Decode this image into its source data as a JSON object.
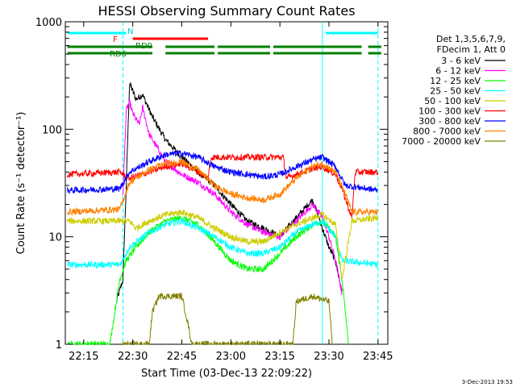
{
  "chart_data": {
    "type": "line",
    "title": "HESSI Observing Summary Count Rates",
    "xlabel": "Start Time (03-Dec-13 22:09:22)",
    "ylabel": "Count Rate (s⁻¹ detector⁻¹)",
    "yscale": "log",
    "ylim": [
      1,
      1000
    ],
    "xlim": [
      "22:09:22",
      "23:48:00"
    ],
    "grid": false,
    "legend_position": "right",
    "x_ticks": [
      "22:15",
      "22:30",
      "22:45",
      "23:00",
      "23:15",
      "23:30",
      "23:45"
    ],
    "y_ticks": [
      "1",
      "10",
      "100",
      "1000"
    ],
    "legend_header": [
      "Det 1,3,5,6,7,9,",
      "FDecim 1, Att 0"
    ],
    "timestamp": "3-Dec-2013 19:53",
    "flag_labels": {
      "N": "N",
      "F": "F",
      "RD0": "RD0",
      "RD6": "RD6"
    },
    "flags": {
      "N": {
        "color": "#00ffff",
        "intervals": [
          [
            "22:10",
            "22:28"
          ],
          [
            "23:29",
            "23:45"
          ]
        ]
      },
      "F": {
        "color": "#ff0000",
        "intervals": [
          [
            "22:30",
            "22:53"
          ]
        ]
      },
      "RD0": {
        "color": "#008000",
        "intervals": [
          [
            "22:10",
            "22:36"
          ],
          [
            "22:40",
            "22:55"
          ],
          [
            "22:56",
            "23:12"
          ],
          [
            "23:13",
            "23:40"
          ],
          [
            "23:42",
            "23:46"
          ]
        ]
      }
    },
    "vlines": [
      {
        "time": "22:27",
        "color": "#00ffff",
        "style": "dashed"
      },
      {
        "time": "23:28",
        "color": "#00ffff",
        "style": "solid"
      },
      {
        "time": "23:45",
        "color": "#00ffff",
        "style": "dashed"
      }
    ],
    "series": [
      {
        "name": "3 - 6 keV",
        "color": "#000000",
        "points": [
          [
            "22:25",
            2.5
          ],
          [
            "22:27",
            4
          ],
          [
            "22:28",
            30
          ],
          [
            "22:29",
            270
          ],
          [
            "22:31",
            190
          ],
          [
            "22:33",
            210
          ],
          [
            "22:36",
            130
          ],
          [
            "22:40",
            80
          ],
          [
            "22:45",
            55
          ],
          [
            "22:50",
            40
          ],
          [
            "22:55",
            30
          ],
          [
            "23:00",
            20
          ],
          [
            "23:05",
            14
          ],
          [
            "23:10",
            12
          ],
          [
            "23:15",
            10
          ],
          [
            "23:20",
            15
          ],
          [
            "23:25",
            22
          ],
          [
            "23:28",
            12
          ],
          [
            "23:30",
            8
          ],
          [
            "23:32",
            6
          ],
          [
            "23:34",
            3
          ]
        ]
      },
      {
        "name": "6 - 12 keV",
        "color": "#ff00ff",
        "points": [
          [
            "22:27",
            25
          ],
          [
            "22:28",
            150
          ],
          [
            "22:29",
            180
          ],
          [
            "22:30",
            140
          ],
          [
            "22:32",
            110
          ],
          [
            "22:33",
            160
          ],
          [
            "22:35",
            90
          ],
          [
            "22:40",
            50
          ],
          [
            "22:45",
            38
          ],
          [
            "22:50",
            32
          ],
          [
            "22:55",
            25
          ],
          [
            "23:00",
            17
          ],
          [
            "23:05",
            13
          ],
          [
            "23:10",
            11
          ],
          [
            "23:15",
            10
          ],
          [
            "23:20",
            14
          ],
          [
            "23:25",
            20
          ],
          [
            "23:28",
            15
          ],
          [
            "23:30",
            10
          ],
          [
            "23:32",
            6
          ],
          [
            "23:34",
            3
          ]
        ]
      },
      {
        "name": "12 - 25 keV",
        "color": "#00ff00",
        "points": [
          [
            "22:10",
            1
          ],
          [
            "22:23",
            1
          ],
          [
            "22:26",
            4
          ],
          [
            "22:28",
            6
          ],
          [
            "22:31",
            8
          ],
          [
            "22:35",
            11
          ],
          [
            "22:40",
            14
          ],
          [
            "22:45",
            15
          ],
          [
            "22:50",
            13
          ],
          [
            "22:55",
            9
          ],
          [
            "23:00",
            6
          ],
          [
            "23:05",
            5
          ],
          [
            "23:10",
            5
          ],
          [
            "23:15",
            7
          ],
          [
            "23:20",
            10
          ],
          [
            "23:25",
            13
          ],
          [
            "23:28",
            14
          ],
          [
            "23:32",
            10
          ],
          [
            "23:34",
            4
          ],
          [
            "23:36",
            1
          ]
        ]
      },
      {
        "name": "25 - 50 keV",
        "color": "#00ffff",
        "points": [
          [
            "22:10",
            5.5
          ],
          [
            "22:26",
            5.5
          ],
          [
            "22:29",
            8
          ],
          [
            "22:35",
            11
          ],
          [
            "22:40",
            13
          ],
          [
            "22:45",
            14
          ],
          [
            "22:50",
            12
          ],
          [
            "22:55",
            10
          ],
          [
            "23:00",
            8
          ],
          [
            "23:05",
            7
          ],
          [
            "23:10",
            7
          ],
          [
            "23:15",
            8
          ],
          [
            "23:20",
            11
          ],
          [
            "23:25",
            13
          ],
          [
            "23:28",
            14
          ],
          [
            "23:32",
            10
          ],
          [
            "23:34",
            6
          ],
          [
            "23:45",
            5.5
          ]
        ]
      },
      {
        "name": "50 - 100 keV",
        "color": "#cccc00",
        "points": [
          [
            "22:10",
            14
          ],
          [
            "22:29",
            14
          ],
          [
            "22:31",
            12
          ],
          [
            "22:35",
            14
          ],
          [
            "22:40",
            16
          ],
          [
            "22:45",
            17
          ],
          [
            "22:50",
            15
          ],
          [
            "22:55",
            12
          ],
          [
            "23:00",
            10
          ],
          [
            "23:05",
            9
          ],
          [
            "23:10",
            9
          ],
          [
            "23:15",
            11
          ],
          [
            "23:20",
            13
          ],
          [
            "23:25",
            15
          ],
          [
            "23:28",
            16
          ],
          [
            "23:32",
            13
          ],
          [
            "23:34",
            4
          ],
          [
            "23:37",
            14
          ],
          [
            "23:45",
            15
          ]
        ]
      },
      {
        "name": "100 - 300 keV",
        "color": "#ff0000",
        "points": [
          [
            "22:10",
            38
          ],
          [
            "22:26",
            40
          ],
          [
            "22:29",
            35
          ],
          [
            "22:35",
            40
          ],
          [
            "22:40",
            45
          ],
          [
            "22:45",
            48
          ],
          [
            "22:50",
            40
          ],
          [
            "22:53",
            35
          ],
          [
            "22:54",
            55
          ],
          [
            "23:10",
            55
          ],
          [
            "23:16",
            55
          ],
          [
            "23:17",
            35
          ],
          [
            "23:20",
            38
          ],
          [
            "23:25",
            43
          ],
          [
            "23:28",
            45
          ],
          [
            "23:32",
            38
          ],
          [
            "23:34",
            28
          ],
          [
            "23:37",
            15
          ],
          [
            "23:38",
            40
          ],
          [
            "23:45",
            40
          ]
        ]
      },
      {
        "name": "300 - 800 keV",
        "color": "#0000ff",
        "points": [
          [
            "22:10",
            27
          ],
          [
            "22:26",
            28
          ],
          [
            "22:29",
            40
          ],
          [
            "22:35",
            50
          ],
          [
            "22:40",
            58
          ],
          [
            "22:45",
            60
          ],
          [
            "22:50",
            55
          ],
          [
            "22:55",
            45
          ],
          [
            "23:00",
            40
          ],
          [
            "23:05",
            38
          ],
          [
            "23:10",
            36
          ],
          [
            "23:15",
            38
          ],
          [
            "23:20",
            45
          ],
          [
            "23:25",
            52
          ],
          [
            "23:28",
            55
          ],
          [
            "23:32",
            45
          ],
          [
            "23:35",
            30
          ],
          [
            "23:45",
            27
          ]
        ]
      },
      {
        "name": "800 - 7000 keV",
        "color": "#ff8000",
        "points": [
          [
            "22:10",
            17
          ],
          [
            "22:26",
            18
          ],
          [
            "22:29",
            32
          ],
          [
            "22:35",
            42
          ],
          [
            "22:40",
            48
          ],
          [
            "22:45",
            50
          ],
          [
            "22:50",
            42
          ],
          [
            "22:55",
            30
          ],
          [
            "23:00",
            25
          ],
          [
            "23:05",
            23
          ],
          [
            "23:10",
            22
          ],
          [
            "23:15",
            25
          ],
          [
            "23:20",
            35
          ],
          [
            "23:25",
            45
          ],
          [
            "23:28",
            48
          ],
          [
            "23:32",
            40
          ],
          [
            "23:35",
            25
          ],
          [
            "23:37",
            17
          ],
          [
            "23:45",
            17
          ]
        ]
      },
      {
        "name": "7000 - 20000 keV",
        "color": "#808000",
        "points": [
          [
            "22:27",
            1
          ],
          [
            "22:35",
            1
          ],
          [
            "22:36",
            2
          ],
          [
            "22:38",
            2.8
          ],
          [
            "22:45",
            2.8
          ],
          [
            "22:47",
            1.5
          ],
          [
            "22:48",
            1
          ],
          [
            "23:19",
            1
          ],
          [
            "23:20",
            2.5
          ],
          [
            "23:25",
            2.8
          ],
          [
            "23:30",
            2.5
          ],
          [
            "23:31",
            1
          ]
        ]
      }
    ]
  }
}
